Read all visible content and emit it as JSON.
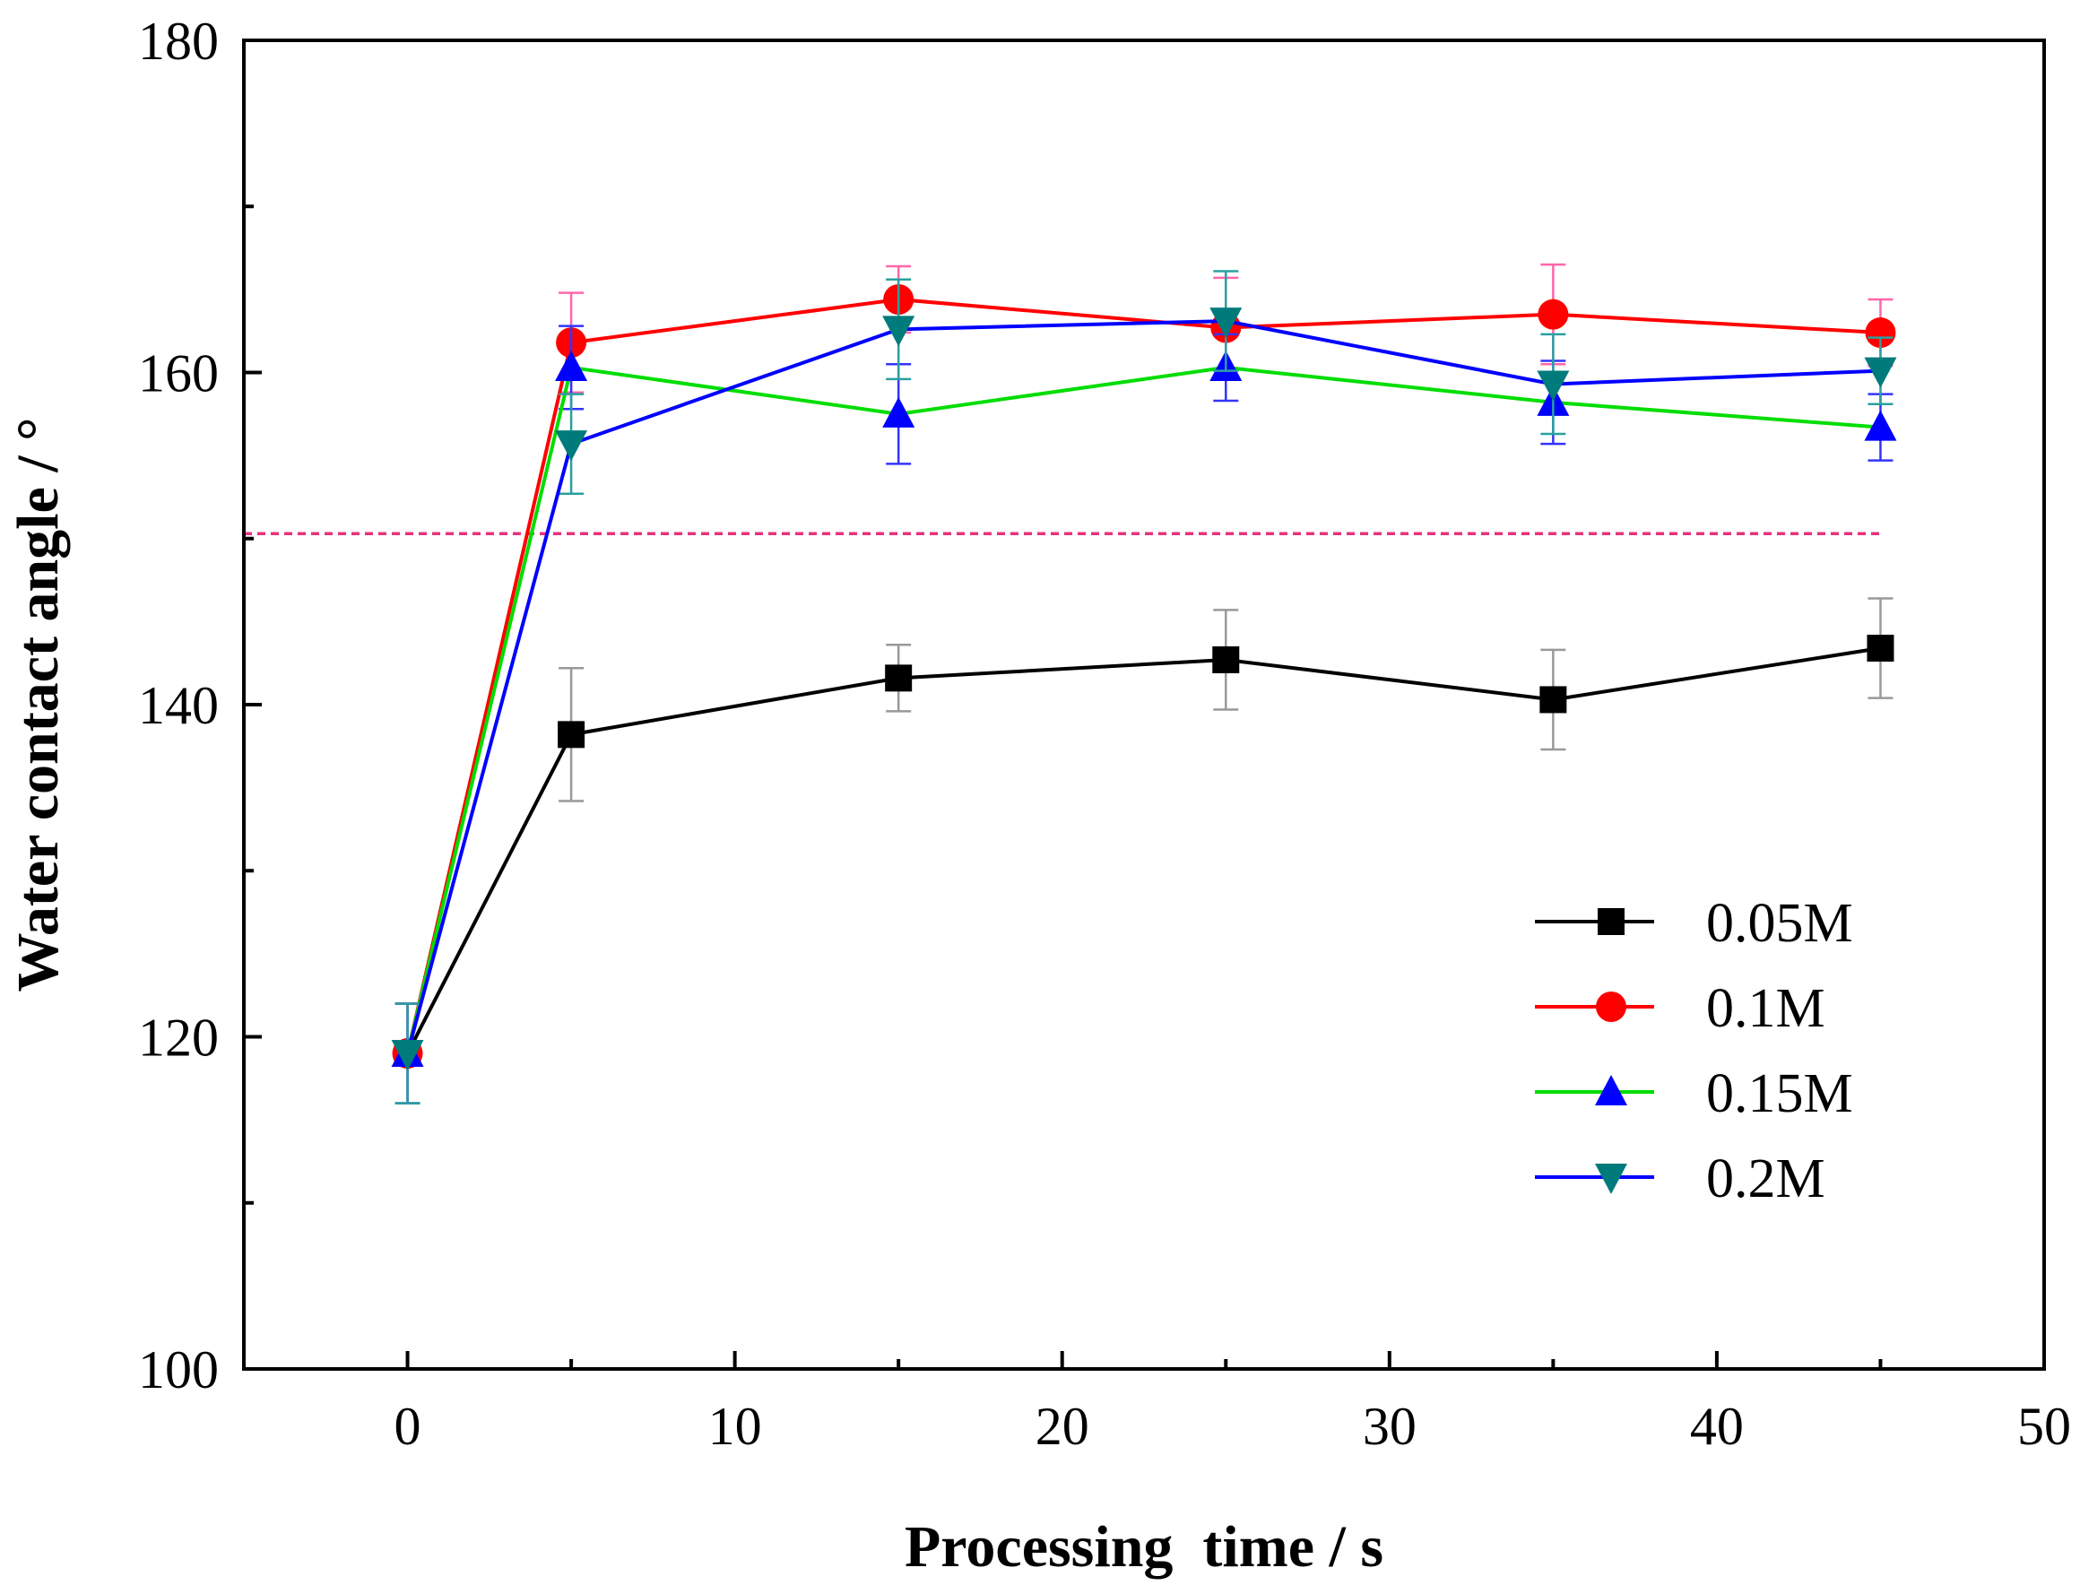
{
  "chart_data": {
    "type": "line",
    "title": "",
    "xlabel": "Processing  time / s",
    "ylabel": "Water contact angle / °",
    "xlim": [
      -5,
      50
    ],
    "ylim": [
      100,
      180
    ],
    "xticks": [
      0,
      10,
      20,
      30,
      40,
      50
    ],
    "yticks": [
      100,
      120,
      140,
      160,
      180
    ],
    "x": [
      0,
      5,
      15,
      25,
      35,
      45
    ],
    "reference_line": {
      "y": 150.3,
      "color": "#e8327d",
      "style": "dashed"
    },
    "legend_position": "lower-right",
    "series": [
      {
        "name": "0.05M",
        "color": "#000000",
        "marker": "square",
        "marker_color": "#000000",
        "values": [
          119.0,
          138.2,
          141.6,
          142.7,
          140.3,
          143.4
        ],
        "errors": [
          3.0,
          4.0,
          2.0,
          3.0,
          3.0,
          3.0
        ],
        "error_color": "#999999"
      },
      {
        "name": "0.1M",
        "color": "#ff0000",
        "marker": "circle",
        "marker_color": "#ff0000",
        "values": [
          119.0,
          161.8,
          164.4,
          162.7,
          163.5,
          162.4
        ],
        "errors": [
          3.0,
          3.0,
          2.0,
          3.0,
          3.0,
          2.0
        ],
        "error_color": "#ff66aa"
      },
      {
        "name": "0.15M",
        "color": "#00dd00",
        "marker": "triangle-up",
        "marker_color": "#0000ff",
        "values": [
          119.0,
          160.3,
          157.5,
          160.3,
          158.2,
          156.7
        ],
        "errors": [
          3.0,
          2.5,
          3.0,
          2.0,
          2.5,
          2.0
        ],
        "error_color": "#3333ff"
      },
      {
        "name": "0.2M",
        "color": "#0000ff",
        "marker": "triangle-down",
        "marker_color": "#007b7b",
        "values": [
          119.0,
          155.7,
          162.6,
          163.1,
          159.3,
          160.1
        ],
        "errors": [
          3.0,
          3.0,
          3.0,
          3.0,
          3.0,
          2.0
        ],
        "error_color": "#2aa0a0"
      }
    ]
  }
}
